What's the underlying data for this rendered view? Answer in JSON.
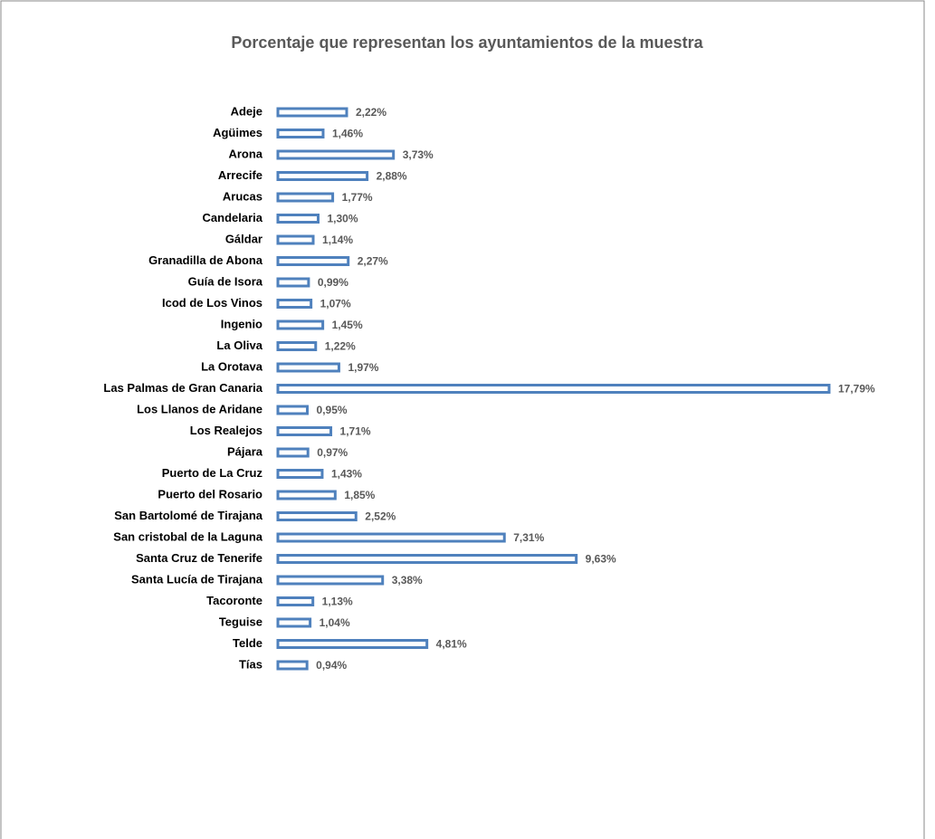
{
  "chart_data": {
    "type": "bar",
    "orientation": "horizontal",
    "title": "Porcentaje que representan los ayuntamientos de la muestra",
    "categories": [
      "Adeje",
      "Agüimes",
      "Arona",
      "Arrecife",
      "Arucas",
      "Candelaria",
      "Gáldar",
      "Granadilla de Abona",
      "Guía de Isora",
      "Icod de Los Vinos",
      "Ingenio",
      "La  Oliva",
      "La  Orotava",
      "Las Palmas de Gran Canaria",
      "Los Llanos de Aridane",
      "Los Realejos",
      "Pájara",
      "Puerto de La Cruz",
      "Puerto del Rosario",
      "San Bartolomé de Tirajana",
      "San cristobal de la Laguna",
      "Santa Cruz de Tenerife",
      "Santa Lucía de Tirajana",
      "Tacoronte",
      "Teguise",
      "Telde",
      "Tías"
    ],
    "values": [
      2.22,
      1.46,
      3.73,
      2.88,
      1.77,
      1.3,
      1.14,
      2.27,
      0.99,
      1.07,
      1.45,
      1.22,
      1.97,
      17.79,
      0.95,
      1.71,
      0.97,
      1.43,
      1.85,
      2.52,
      7.31,
      9.63,
      3.38,
      1.13,
      1.04,
      4.81,
      0.94
    ],
    "value_labels": [
      "2,22%",
      "1,46%",
      "3,73%",
      "2,88%",
      "1,77%",
      "1,30%",
      "1,14%",
      "2,27%",
      "0,99%",
      "1,07%",
      "1,45%",
      "1,22%",
      "1,97%",
      "17,79%",
      "0,95%",
      "1,71%",
      "0,97%",
      "1,43%",
      "1,85%",
      "2,52%",
      "7,31%",
      "9,63%",
      "3,38%",
      "1,13%",
      "1,04%",
      "4,81%",
      "0,94%"
    ],
    "color": "#4f81bd"
  }
}
